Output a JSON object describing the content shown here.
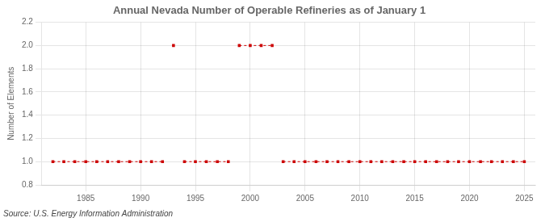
{
  "chart_data": {
    "type": "line",
    "title": "Annual Nevada Number of Operable Refineries as of January 1",
    "ylabel": "Number of Elements",
    "annotations": [
      "Source: U.S. Energy Information Administration"
    ],
    "x": [
      1982,
      1983,
      1984,
      1985,
      1986,
      1987,
      1988,
      1989,
      1990,
      1991,
      1992,
      1993,
      1994,
      1995,
      1996,
      1997,
      1998,
      1999,
      2000,
      2001,
      2002,
      2003,
      2004,
      2005,
      2006,
      2007,
      2008,
      2009,
      2010,
      2011,
      2012,
      2013,
      2014,
      2015,
      2016,
      2017,
      2018,
      2019,
      2020,
      2021,
      2022,
      2023,
      2024,
      2025
    ],
    "values": [
      1,
      1,
      1,
      1,
      1,
      1,
      1,
      1,
      1,
      1,
      1,
      2,
      1,
      1,
      1,
      1,
      1,
      2,
      2,
      2,
      2,
      1,
      1,
      1,
      1,
      1,
      1,
      1,
      1,
      1,
      1,
      1,
      1,
      1,
      1,
      1,
      1,
      1,
      1,
      1,
      1,
      1,
      1,
      1
    ],
    "color": "#cc0000",
    "marker": "square",
    "line_style": "dashed",
    "xlim": [
      1981,
      2026
    ],
    "xticks": [
      1985,
      1990,
      1995,
      2000,
      2005,
      2010,
      2015,
      2020,
      2025
    ],
    "ylim": [
      0.8,
      2.2
    ],
    "yticks": [
      0.8,
      {
        "value": 1.0,
        "label": "1.0"
      },
      1.2,
      1.4,
      1.6,
      1.8,
      {
        "value": 2.0,
        "label": "2.0"
      },
      2.2
    ],
    "grid": true
  }
}
